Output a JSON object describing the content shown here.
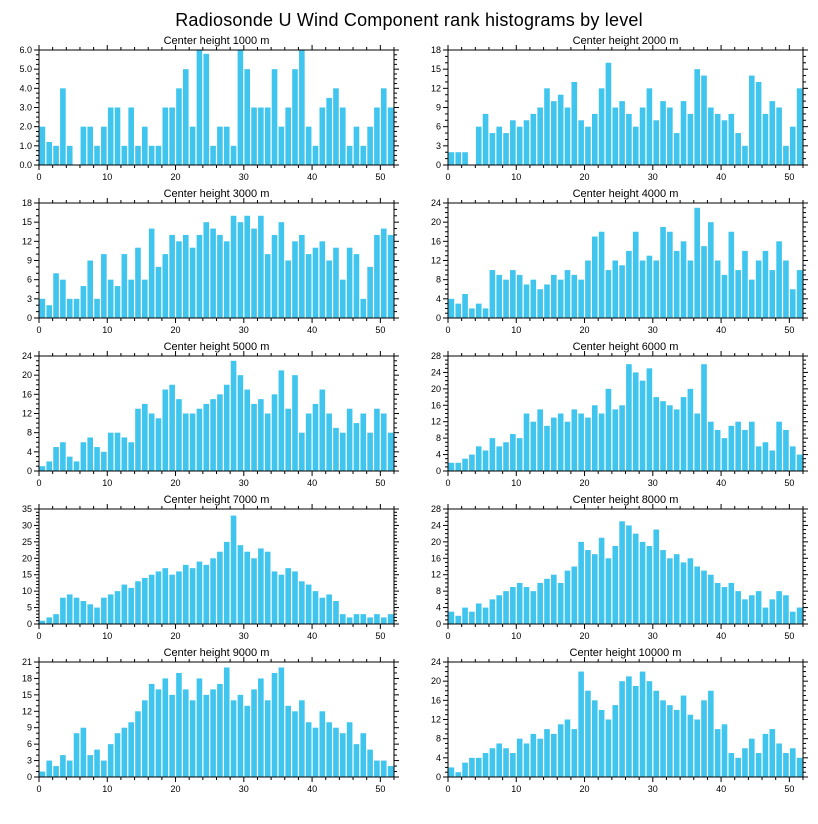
{
  "page": {
    "title": "Radiosonde U Wind Component rank histograms by level"
  },
  "style": {
    "bar_color": "#3fc5ee",
    "axis_color": "#000000"
  },
  "chart_data": [
    {
      "type": "bar",
      "title": "Center height 1000 m",
      "xlim": [
        0,
        52
      ],
      "xticks": [
        0,
        10,
        20,
        30,
        40,
        50
      ],
      "x_minor_step": 2,
      "ylim": [
        0,
        6.0
      ],
      "ytick_vals": [
        0,
        1,
        2,
        3,
        4,
        5,
        6
      ],
      "ytick_labels": [
        "0.0",
        "1.0",
        "2.0",
        "3.0",
        "4.0",
        "5.0",
        "6.0"
      ],
      "y_minor_step": 0.25,
      "values": [
        2.0,
        1.2,
        1.0,
        4.0,
        1.0,
        0.0,
        2.0,
        2.0,
        1.0,
        2.0,
        3.0,
        3.0,
        1.0,
        3.0,
        1.0,
        2.0,
        1.0,
        1.0,
        3.0,
        3.0,
        4.0,
        5.0,
        2.0,
        6.0,
        5.8,
        1.0,
        2.0,
        2.0,
        1.0,
        6.0,
        5.0,
        3.0,
        3.0,
        3.0,
        5.0,
        2.0,
        3.0,
        5.0,
        6.0,
        2.0,
        1.0,
        3.0,
        3.5,
        4.0,
        3.0,
        1.0,
        2.0,
        1.0,
        2.0,
        3.0,
        4.0,
        3.0
      ]
    },
    {
      "type": "bar",
      "title": "Center height 2000 m",
      "xlim": [
        0,
        52
      ],
      "xticks": [
        0,
        10,
        20,
        30,
        40,
        50
      ],
      "x_minor_step": 2,
      "ylim": [
        0,
        18
      ],
      "ytick_vals": [
        0,
        3,
        6,
        9,
        12,
        15,
        18
      ],
      "ytick_labels": [
        "0",
        "3",
        "6",
        "9",
        "12",
        "15",
        "18"
      ],
      "y_minor_step": 1,
      "values": [
        2,
        2,
        2,
        0,
        6,
        8,
        5,
        6,
        5,
        7,
        6,
        7,
        8,
        9,
        12,
        10,
        11,
        9,
        13,
        7,
        6,
        8,
        12,
        16,
        9,
        10,
        8,
        6,
        9,
        12,
        7,
        10,
        9,
        5,
        10,
        8,
        15,
        14,
        9,
        8,
        7,
        8,
        5,
        3,
        14,
        13,
        8,
        10,
        9,
        3,
        6,
        12
      ]
    },
    {
      "type": "bar",
      "title": "Center height 3000 m",
      "xlim": [
        0,
        52
      ],
      "xticks": [
        0,
        10,
        20,
        30,
        40,
        50
      ],
      "x_minor_step": 2,
      "ylim": [
        0,
        18
      ],
      "ytick_vals": [
        0,
        3,
        6,
        9,
        12,
        15,
        18
      ],
      "ytick_labels": [
        "0",
        "3",
        "6",
        "9",
        "12",
        "15",
        "18"
      ],
      "y_minor_step": 1,
      "values": [
        3,
        2,
        7,
        6,
        3,
        3,
        5,
        9,
        3,
        10,
        6,
        5,
        10,
        6,
        11,
        6,
        14,
        8,
        10,
        13,
        12,
        13,
        11,
        13,
        15,
        14,
        13,
        12,
        16,
        15,
        16,
        14,
        16,
        10,
        13,
        15,
        9,
        12,
        13,
        10,
        11,
        12,
        9,
        11,
        6,
        11,
        10,
        3,
        8,
        13,
        14,
        13
      ]
    },
    {
      "type": "bar",
      "title": "Center height 4000 m",
      "xlim": [
        0,
        52
      ],
      "xticks": [
        0,
        10,
        20,
        30,
        40,
        50
      ],
      "x_minor_step": 2,
      "ylim": [
        0,
        24
      ],
      "ytick_vals": [
        0,
        4,
        8,
        12,
        16,
        20,
        24
      ],
      "ytick_labels": [
        "0",
        "4",
        "8",
        "12",
        "16",
        "20",
        "24"
      ],
      "y_minor_step": 1,
      "values": [
        4,
        3,
        5,
        2,
        3,
        2,
        10,
        9,
        8,
        10,
        9,
        7,
        8,
        6,
        7,
        9,
        8,
        10,
        9,
        8,
        12,
        17,
        18,
        10,
        12,
        11,
        14,
        18,
        12,
        13,
        12,
        19,
        18,
        14,
        16,
        12,
        23,
        15,
        20,
        12,
        9,
        18,
        10,
        14,
        8,
        12,
        14,
        10,
        16,
        12,
        6,
        10
      ]
    },
    {
      "type": "bar",
      "title": "Center height 5000 m",
      "xlim": [
        0,
        52
      ],
      "xticks": [
        0,
        10,
        20,
        30,
        40,
        50
      ],
      "x_minor_step": 2,
      "ylim": [
        0,
        24
      ],
      "ytick_vals": [
        0,
        4,
        8,
        12,
        16,
        20,
        24
      ],
      "ytick_labels": [
        "0",
        "4",
        "8",
        "12",
        "16",
        "20",
        "24"
      ],
      "y_minor_step": 1,
      "values": [
        1,
        2,
        5,
        6,
        3,
        2,
        6,
        7,
        5,
        4,
        8,
        8,
        7,
        6,
        13,
        14,
        12,
        11,
        17,
        18,
        15,
        12,
        12,
        13,
        14,
        15,
        16,
        18,
        23,
        20,
        17,
        14,
        15,
        12,
        16,
        21,
        13,
        20,
        8,
        12,
        14,
        17,
        12,
        9,
        8,
        13,
        10,
        12,
        8,
        13,
        12,
        8
      ]
    },
    {
      "type": "bar",
      "title": "Center height 6000 m",
      "xlim": [
        0,
        52
      ],
      "xticks": [
        0,
        10,
        20,
        30,
        40,
        50
      ],
      "x_minor_step": 2,
      "ylim": [
        0,
        28
      ],
      "ytick_vals": [
        0,
        4,
        8,
        12,
        16,
        20,
        24,
        28
      ],
      "ytick_labels": [
        "0",
        "4",
        "8",
        "12",
        "16",
        "20",
        "24",
        "28"
      ],
      "y_minor_step": 1,
      "values": [
        2,
        2,
        3,
        4,
        6,
        5,
        8,
        6,
        7,
        9,
        8,
        14,
        12,
        15,
        11,
        13,
        14,
        12,
        15,
        14,
        13,
        16,
        14,
        20,
        15,
        16,
        26,
        24,
        22,
        25,
        18,
        17,
        16,
        15,
        18,
        20,
        14,
        26,
        12,
        10,
        8,
        11,
        12,
        10,
        12,
        6,
        7,
        5,
        12,
        10,
        6,
        4
      ]
    },
    {
      "type": "bar",
      "title": "Center height 7000 m",
      "xlim": [
        0,
        52
      ],
      "xticks": [
        0,
        10,
        20,
        30,
        40,
        50
      ],
      "x_minor_step": 2,
      "ylim": [
        0,
        35
      ],
      "ytick_vals": [
        0,
        5,
        10,
        15,
        20,
        25,
        30,
        35
      ],
      "ytick_labels": [
        "0",
        "5",
        "10",
        "15",
        "20",
        "25",
        "30",
        "35"
      ],
      "y_minor_step": 1,
      "values": [
        1,
        2,
        3,
        8,
        9,
        8,
        7,
        6,
        5,
        8,
        9,
        10,
        12,
        11,
        13,
        14,
        15,
        16,
        17,
        15,
        16,
        18,
        17,
        19,
        18,
        20,
        22,
        25,
        33,
        24,
        22,
        20,
        23,
        22,
        16,
        15,
        17,
        16,
        13,
        12,
        10,
        8,
        9,
        7,
        3,
        2,
        3,
        3,
        2,
        3,
        2,
        3
      ]
    },
    {
      "type": "bar",
      "title": "Center height 8000 m",
      "xlim": [
        0,
        52
      ],
      "xticks": [
        0,
        10,
        20,
        30,
        40,
        50
      ],
      "x_minor_step": 2,
      "ylim": [
        0,
        28
      ],
      "ytick_vals": [
        0,
        4,
        8,
        12,
        16,
        20,
        24,
        28
      ],
      "ytick_labels": [
        "0",
        "4",
        "8",
        "12",
        "16",
        "20",
        "24",
        "28"
      ],
      "y_minor_step": 1,
      "values": [
        3,
        2,
        4,
        3,
        5,
        4,
        6,
        7,
        8,
        9,
        10,
        9,
        8,
        10,
        11,
        12,
        10,
        13,
        14,
        20,
        18,
        17,
        21,
        16,
        19,
        25,
        24,
        22,
        20,
        19,
        23,
        18,
        16,
        17,
        15,
        16,
        14,
        13,
        12,
        10,
        9,
        10,
        8,
        6,
        7,
        8,
        4,
        6,
        8,
        7,
        3,
        4
      ]
    },
    {
      "type": "bar",
      "title": "Center height 9000 m",
      "xlim": [
        0,
        52
      ],
      "xticks": [
        0,
        10,
        20,
        30,
        40,
        50
      ],
      "x_minor_step": 2,
      "ylim": [
        0,
        21
      ],
      "ytick_vals": [
        0,
        3,
        6,
        9,
        12,
        15,
        18,
        21
      ],
      "ytick_labels": [
        "0",
        "3",
        "6",
        "9",
        "12",
        "15",
        "18",
        "21"
      ],
      "y_minor_step": 1,
      "values": [
        1,
        3,
        2,
        4,
        3,
        8,
        9,
        4,
        5,
        3,
        6,
        8,
        9,
        10,
        12,
        14,
        17,
        16,
        18,
        15,
        19,
        16,
        14,
        18,
        15,
        16,
        17,
        20,
        14,
        15,
        13,
        16,
        18,
        14,
        19,
        20,
        13,
        12,
        14,
        10,
        9,
        12,
        10,
        9,
        8,
        10,
        6,
        8,
        5,
        3,
        3,
        2
      ]
    },
    {
      "type": "bar",
      "title": "Center height 10000 m",
      "xlim": [
        0,
        52
      ],
      "xticks": [
        0,
        10,
        20,
        30,
        40,
        50
      ],
      "x_minor_step": 2,
      "ylim": [
        0,
        24
      ],
      "ytick_vals": [
        0,
        4,
        8,
        12,
        16,
        20,
        24
      ],
      "ytick_labels": [
        "0",
        "4",
        "8",
        "12",
        "16",
        "20",
        "24"
      ],
      "y_minor_step": 1,
      "values": [
        2,
        1,
        3,
        4,
        4,
        5,
        6,
        7,
        6,
        5,
        8,
        7,
        9,
        8,
        10,
        9,
        11,
        12,
        10,
        22,
        18,
        16,
        14,
        12,
        15,
        20,
        21,
        19,
        22,
        20,
        18,
        16,
        15,
        14,
        17,
        13,
        12,
        16,
        18,
        10,
        11,
        5,
        4,
        6,
        8,
        5,
        9,
        10,
        7,
        5,
        6,
        4
      ]
    }
  ]
}
